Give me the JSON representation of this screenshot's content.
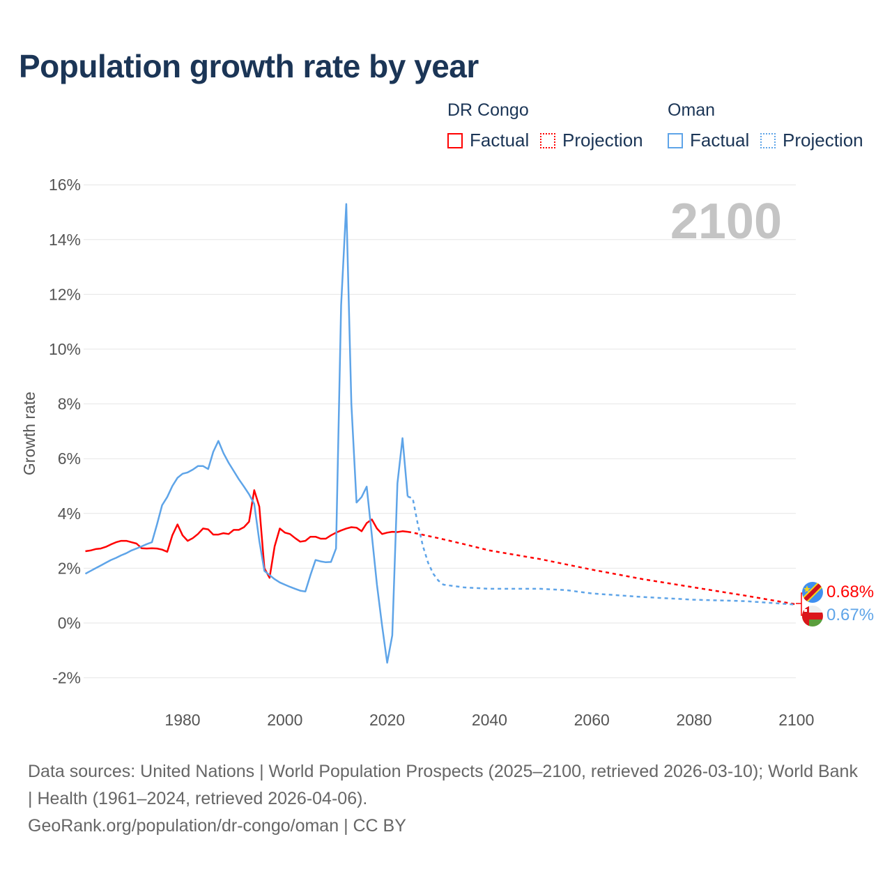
{
  "title": "Population growth rate by year",
  "legend": {
    "groups": [
      {
        "name": "DR Congo",
        "factual": "Factual",
        "projection": "Projection",
        "color": "#ff0000"
      },
      {
        "name": "Oman",
        "factual": "Factual",
        "projection": "Projection",
        "color": "#5ea4e8"
      }
    ]
  },
  "year_label": "2100",
  "end_labels": {
    "drc": "0.68%",
    "oman": "0.67%"
  },
  "footer": {
    "sources": "Data sources: United Nations | World Population Prospects (2025–2100, retrieved 2026-03-10); World Bank | Health (1961–2024, retrieved 2026-04-06).",
    "link": "GeoRank.org/population/dr-congo/oman | CC BY"
  },
  "chart_data": {
    "type": "line",
    "title": "Population growth rate by year",
    "xlabel": "",
    "ylabel": "Growth rate",
    "xlim": [
      1961,
      2100
    ],
    "ylim": [
      -3,
      16.5
    ],
    "x_ticks": [
      1980,
      2000,
      2020,
      2040,
      2060,
      2080,
      2100
    ],
    "x_tick_labels": [
      "1980",
      "2000",
      "2020",
      "2040",
      "2060",
      "2080",
      "2100"
    ],
    "y_ticks": [
      -2,
      0,
      2,
      4,
      6,
      8,
      10,
      12,
      14,
      16
    ],
    "y_tick_labels": [
      "-2%",
      "0%",
      "2%",
      "4%",
      "6%",
      "8%",
      "10%",
      "12%",
      "14%",
      "16%"
    ],
    "grid": true,
    "legend_position": "top-right",
    "series": [
      {
        "name": "DR Congo Factual",
        "color": "#ff0000",
        "dashed": false,
        "start": 1961,
        "values": [
          2.62,
          2.65,
          2.7,
          2.72,
          2.78,
          2.87,
          2.95,
          3.0,
          3.0,
          2.95,
          2.9,
          2.73,
          2.72,
          2.73,
          2.72,
          2.68,
          2.6,
          3.2,
          3.6,
          3.2,
          3.0,
          3.1,
          3.25,
          3.45,
          3.42,
          3.23,
          3.23,
          3.28,
          3.25,
          3.4,
          3.4,
          3.5,
          3.7,
          4.85,
          4.25,
          2.0,
          1.65,
          2.8,
          3.45,
          3.3,
          3.25,
          3.1,
          2.97,
          3.0,
          3.15,
          3.15,
          3.08,
          3.08,
          3.2,
          3.3,
          3.38,
          3.45,
          3.5,
          3.48,
          3.35,
          3.65,
          3.78,
          3.45,
          3.25,
          3.3,
          3.33,
          3.32,
          3.35,
          3.33
        ]
      },
      {
        "name": "DR Congo Projection",
        "color": "#ff0000",
        "dashed": true,
        "x": [
          2024,
          2025,
          2030,
          2035,
          2040,
          2050,
          2060,
          2070,
          2080,
          2090,
          2100
        ],
        "values": [
          3.33,
          3.3,
          3.1,
          2.88,
          2.65,
          2.33,
          1.95,
          1.6,
          1.3,
          1.0,
          0.68
        ]
      },
      {
        "name": "Oman Factual",
        "color": "#5ea4e8",
        "dashed": false,
        "start": 1961,
        "values": [
          1.8,
          1.9,
          2.0,
          2.1,
          2.2,
          2.3,
          2.38,
          2.47,
          2.55,
          2.65,
          2.72,
          2.8,
          2.88,
          2.95,
          3.6,
          4.3,
          4.6,
          5.0,
          5.3,
          5.45,
          5.5,
          5.6,
          5.73,
          5.73,
          5.62,
          6.25,
          6.65,
          6.2,
          5.85,
          5.55,
          5.25,
          4.98,
          4.7,
          4.35,
          3.0,
          1.9,
          1.75,
          1.6,
          1.48,
          1.4,
          1.32,
          1.25,
          1.18,
          1.15,
          1.75,
          2.3,
          2.25,
          2.22,
          2.23,
          2.72,
          11.6,
          15.3,
          8.0,
          4.4,
          4.6,
          4.98,
          3.2,
          1.4,
          -0.1,
          -1.45,
          -0.45,
          5.1,
          6.75,
          4.62
        ]
      },
      {
        "name": "Oman Projection",
        "color": "#5ea4e8",
        "dashed": true,
        "x": [
          2024,
          2025,
          2026,
          2027,
          2028,
          2029,
          2030,
          2031,
          2035,
          2040,
          2050,
          2055,
          2060,
          2070,
          2080,
          2090,
          2100
        ],
        "values": [
          4.62,
          4.55,
          3.6,
          2.8,
          2.2,
          1.8,
          1.55,
          1.4,
          1.3,
          1.25,
          1.25,
          1.2,
          1.08,
          0.95,
          0.85,
          0.8,
          0.67
        ]
      }
    ]
  }
}
